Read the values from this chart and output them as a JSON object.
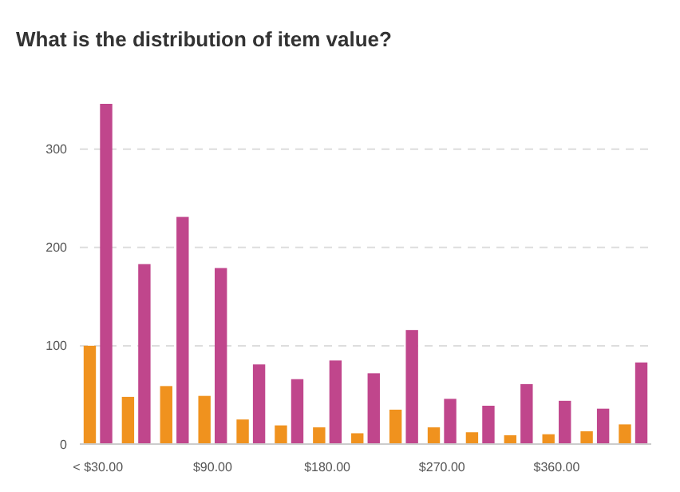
{
  "chart_data": {
    "type": "bar",
    "title": "What is the distribution of item value?",
    "categories": [
      "< $30.00",
      null,
      null,
      "$90.00",
      null,
      null,
      "$180.00",
      null,
      null,
      "$270.00",
      null,
      null,
      "$360.00",
      null,
      null
    ],
    "series": [
      {
        "color": "#f0921e",
        "values": [
          100,
          48,
          59,
          49,
          25,
          19,
          17,
          11,
          35,
          17,
          12,
          9,
          10,
          13,
          20
        ]
      },
      {
        "color": "#c0468c",
        "values": [
          346,
          183,
          231,
          179,
          81,
          66,
          85,
          72,
          116,
          46,
          39,
          61,
          44,
          36,
          83
        ]
      }
    ],
    "ylim": [
      0,
      346
    ],
    "yticks": [
      0,
      100,
      200,
      300
    ],
    "grid": "y"
  }
}
